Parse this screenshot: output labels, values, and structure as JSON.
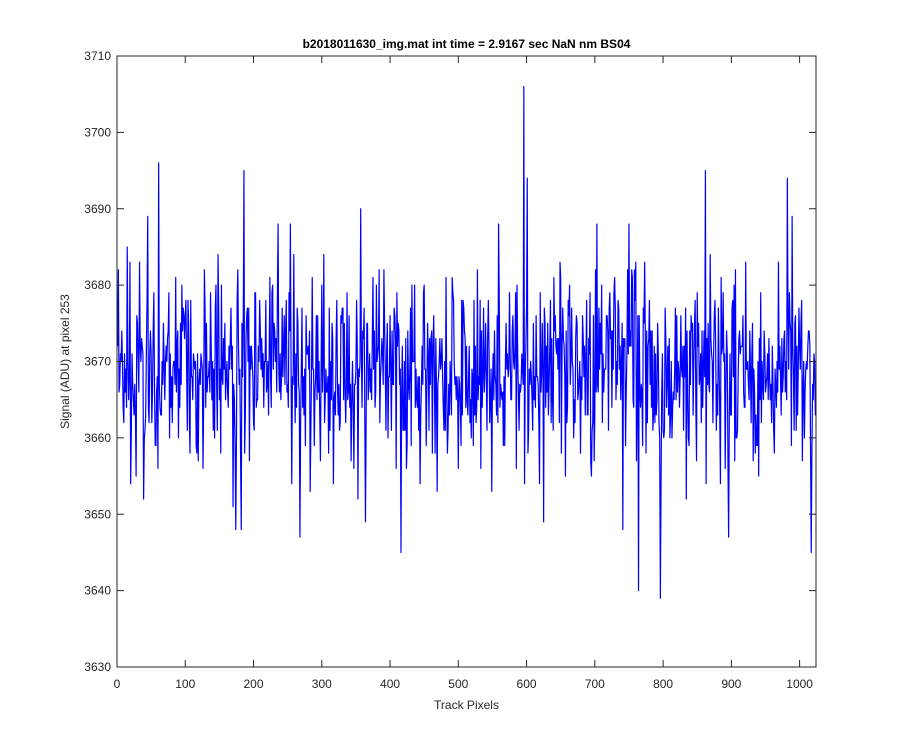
{
  "chart_data": {
    "type": "line",
    "title": "b2018011630_img.mat int time = 2.9167 sec  NaN nm BS04",
    "xlabel": "Track Pixels",
    "ylabel": "Signal (ADU) at pixel 253",
    "xlim": [
      0,
      1024
    ],
    "ylim": [
      3630,
      3710
    ],
    "xticks": [
      0,
      100,
      200,
      300,
      400,
      500,
      600,
      700,
      800,
      900,
      1000
    ],
    "yticks": [
      3630,
      3640,
      3650,
      3660,
      3670,
      3680,
      3690,
      3700,
      3710
    ],
    "grid": false,
    "legend": "none",
    "series": [
      {
        "color": "#0000ff",
        "x_start": 1,
        "x_step": 1,
        "baseline_mean": 3669,
        "noise_range": [
          3652,
          3684
        ],
        "points_count": 1024,
        "peaks": [
          {
            "x": 2,
            "y": 3682
          },
          {
            "x": 15,
            "y": 3685
          },
          {
            "x": 45,
            "y": 3689
          },
          {
            "x": 61,
            "y": 3696
          },
          {
            "x": 186,
            "y": 3695
          },
          {
            "x": 236,
            "y": 3688
          },
          {
            "x": 254,
            "y": 3688
          },
          {
            "x": 357,
            "y": 3690
          },
          {
            "x": 559,
            "y": 3688
          },
          {
            "x": 596,
            "y": 3706
          },
          {
            "x": 601,
            "y": 3694
          },
          {
            "x": 703,
            "y": 3688
          },
          {
            "x": 750,
            "y": 3688
          },
          {
            "x": 862,
            "y": 3695
          },
          {
            "x": 982,
            "y": 3694
          },
          {
            "x": 989,
            "y": 3689
          },
          {
            "x": 20,
            "y": 3654
          },
          {
            "x": 39,
            "y": 3652
          },
          {
            "x": 170,
            "y": 3651
          },
          {
            "x": 174,
            "y": 3648
          },
          {
            "x": 182,
            "y": 3648
          },
          {
            "x": 268,
            "y": 3647
          },
          {
            "x": 364,
            "y": 3649
          },
          {
            "x": 416,
            "y": 3645
          },
          {
            "x": 625,
            "y": 3649
          },
          {
            "x": 741,
            "y": 3648
          },
          {
            "x": 764,
            "y": 3640
          },
          {
            "x": 796,
            "y": 3639
          },
          {
            "x": 896,
            "y": 3647
          },
          {
            "x": 1017,
            "y": 3645
          }
        ]
      }
    ]
  }
}
